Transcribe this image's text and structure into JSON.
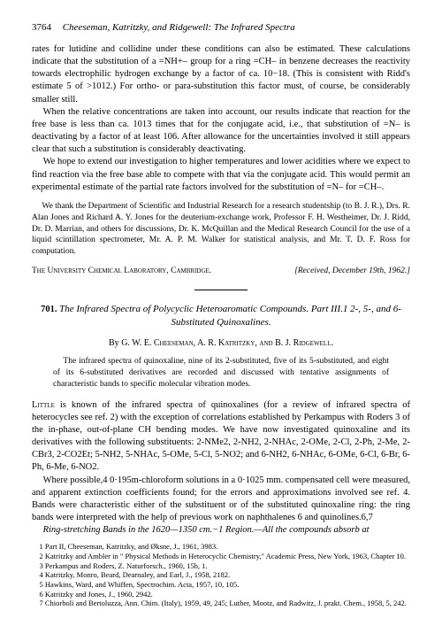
{
  "header": {
    "page_number": "3764",
    "running_title": "Cheeseman, Katritzky, and Ridgewell: The Infrared Spectra"
  },
  "para1": "rates for lutidine and collidine under these conditions can also be estimated. These calculations indicate that the substitution of a =NH+– group for a ring =CH– in benzene decreases the reactivity towards electrophilic hydrogen exchange by a factor of ca. 10−18. (This is consistent with Ridd's estimate 5 of >1012.) For ortho- or para-substitution this factor must, of course, be considerably smaller still.",
  "para2": "When the relative concentrations are taken into account, our results indicate that reaction for the free base is less than ca. 1013 times that for the conjugate acid, i.e., that substitution of =N– is deactivating by a factor of at least 106. After allowance for the uncertainties involved it still appears clear that such a substitution is considerably deactivating.",
  "para3": "We hope to extend our investigation to higher temperatures and lower acidities where we expect to find reaction via the free base able to compete with that via the conjugate acid. This would permit an experimental estimate of the partial rate factors involved for the substitution of =N– for =CH–.",
  "ack": "We thank the Department of Scientific and Industrial Research for a research studentship (to B. J. R.), Drs. R. Alan Jones and Richard A. Y. Jones for the deuterium-exchange work, Professor F. H. Westheimer, Dr. J. Ridd, Dr. D. Marrian, and others for discussions, Dr. K. McQuillan and the Medical Research Council for the use of a liquid scintillation spectrometer, Mr. A. P. M. Walker for statistical analysis, and Mr. T. D. F. Ross for computation.",
  "affiliation": {
    "left": "The University Chemical Laboratory, Cambridge.",
    "right": "[Received, December 19th, 1962.]"
  },
  "article": {
    "number": "701.",
    "title": "The Infrared Spectra of Polycyclic Heteroaromatic Compounds. Part III.1 2-, 5-, and 6-Substituted Quinoxalines.",
    "authors_prefix": "By ",
    "authors": "G. W. E. Cheeseman, A. R. Katritzky, and B. J. Ridgewell.",
    "abstract": "The infrared spectra of quinoxaline, nine of its 2-substituted, five of its 5-substituted, and eight of its 6-substituted derivatives are recorded and discussed with tentative assignments of characteristic bands to specific molecular vibration modes."
  },
  "para4a": "Little",
  "para4b": " is known of the infrared spectra of quinoxalines (for a review of infrared spectra of heterocycles see ref. 2) with the exception of correlations established by Perkampus with Roders 3 of the in-phase, out-of-plane CH bending modes. We have now investigated quinoxaline and its derivatives with the following substituents: 2-NMe2, 2-NH2, 2-NHAc, 2-OMe, 2-Cl, 2-Ph, 2-Me, 2-CBr3, 2-CO2Et; 5-NH2, 5-NHAc, 5-OMe, 5-Cl, 5-NO2; and 6-NH2, 6-NHAc, 6-OMe, 6-Cl, 6-Br, 6-Ph, 6-Me, 6-NO2.",
  "para5": "Where possible,4 0·195m-chloroform solutions in a 0·1025 mm. compensated cell were measured, and apparent extinction coefficients found; for the errors and approximations involved see ref. 4. Bands were characteristic either of the substituent or of the substituted quinoxaline ring: the ring bands were interpreted with the help of previous work on naphthalenes 6 and quinolines.6,7",
  "para6": "Ring-stretching Bands in the 1620—1350 cm.−1 Region.—All the compounds absorb at",
  "refs": [
    "1 Part II, Cheeseman, Katritzky, and Øksne, J., 1961, 3983.",
    "2 Katritzky and Ambler in \" Physical Methods in Heterocyclic Chemistry,\" Academic Press, New York, 1963, Chapter 10.",
    "3 Perkampus and Roders, Z. Naturforsch., 1960, 15b, 1.",
    "4 Katritzky, Monro, Beard, Dearnaley, and Earl, J., 1958, 2182.",
    "5 Hawkins, Ward, and Whiffen, Spectrochim. Acta, 1957, 10, 105.",
    "6 Katritzky and Jones, J., 1960, 2942.",
    "7 Chiorboli and Bertoluzza, Ann. Chim. (Italy), 1959, 49, 245; Luther, Mootz, and Radwitz, J. prakt. Chem., 1958, 5, 242."
  ]
}
